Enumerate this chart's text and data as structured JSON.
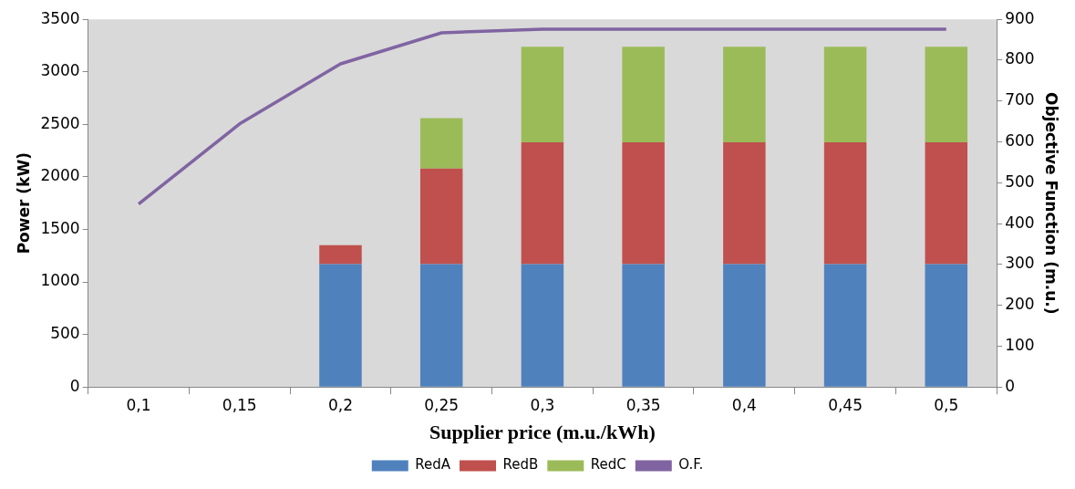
{
  "chart_data": {
    "type": "bar",
    "stacked": true,
    "xlabel": "Supplier price (m.u./kWh)",
    "ylabel": "Power (kW)",
    "y2label": "Objective Function (m.u.)",
    "categories": [
      "0,1",
      "0,15",
      "0,2",
      "0,25",
      "0,3",
      "0,35",
      "0,4",
      "0,45",
      "0,5"
    ],
    "series": [
      {
        "name": "RedA",
        "color": "#4f81bd",
        "values": [
          null,
          null,
          1170,
          1170,
          1170,
          1170,
          1170,
          1170,
          1170
        ]
      },
      {
        "name": "RedB",
        "color": "#c0504d",
        "values": [
          null,
          null,
          180,
          910,
          1160,
          1160,
          1160,
          1160,
          1160
        ]
      },
      {
        "name": "RedC",
        "color": "#9bbb59",
        "values": [
          null,
          null,
          null,
          480,
          910,
          910,
          910,
          910,
          910
        ]
      },
      {
        "name": "O.F.",
        "type": "line",
        "axis": "y2",
        "color": "#8064a2",
        "values": [
          448,
          644,
          791,
          867,
          876,
          876,
          876,
          876,
          876
        ]
      }
    ],
    "ylim": [
      0,
      3500
    ],
    "yticks": [
      0,
      500,
      1000,
      1500,
      2000,
      2500,
      3000,
      3500
    ],
    "y2lim": [
      0,
      900
    ],
    "y2ticks": [
      0,
      100,
      200,
      300,
      400,
      500,
      600,
      700,
      800,
      900
    ],
    "grid": false,
    "legend": "bottom",
    "marker": "none",
    "line_style": "solid"
  }
}
